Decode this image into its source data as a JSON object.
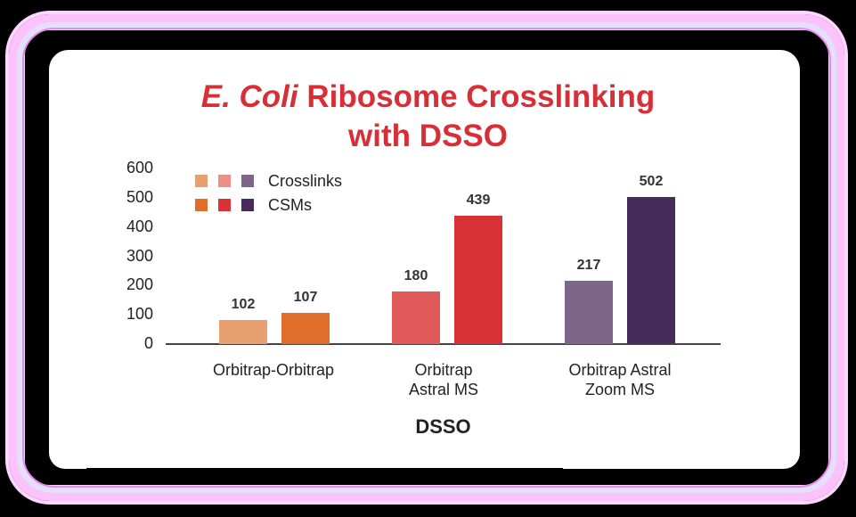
{
  "chart_data": {
    "type": "bar",
    "title": "E. Coli Ribosome Crosslinking with DSSO",
    "title_parts": {
      "italic": "E. Coli",
      "rest_line1": " Ribosome Crosslinking",
      "line2": "with DSSO"
    },
    "categories": [
      "Orbitrap-Orbitrap",
      "Orbitrap Astral MS",
      "Orbitrap Astral Zoom MS"
    ],
    "category_lines": [
      [
        "Orbitrap-Orbitrap"
      ],
      [
        "Orbitrap",
        "Astral MS"
      ],
      [
        "Orbitrap Astral",
        "Zoom MS"
      ]
    ],
    "series": [
      {
        "name": "Crosslinks",
        "values": [
          102,
          180,
          217
        ],
        "colors": [
          "#e9a070",
          "#e05a5a",
          "#7d6688"
        ]
      },
      {
        "name": "CSMs",
        "values": [
          107,
          439,
          502
        ],
        "colors": [
          "#df6e2a",
          "#d83236",
          "#472b5a"
        ]
      }
    ],
    "xlabel": "DSSO",
    "ylabel": "",
    "ylim": [
      0,
      600
    ],
    "yticks": [
      0,
      100,
      200,
      300,
      400,
      500,
      600
    ],
    "grid": false,
    "legend_position": "upper-left",
    "data_labels": true
  },
  "colors": {
    "title": "#d72f35",
    "frame_glow": "#fbc2fb",
    "frame_line": "#e08cf0",
    "background": "#000000",
    "panel": "#ffffff"
  }
}
